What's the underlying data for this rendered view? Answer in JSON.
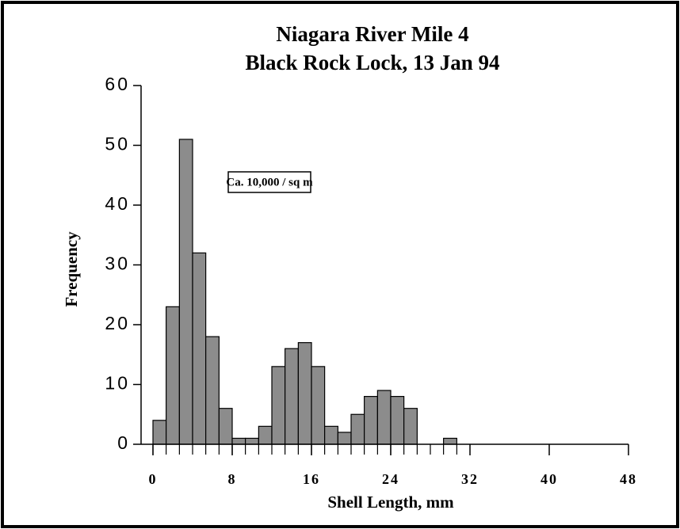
{
  "chart_data": {
    "type": "histogram",
    "title": "Niagara River Mile 4",
    "subtitle": "Black Rock Lock, 13 Jan 94",
    "annotation": "Ca. 10,000 / sq m",
    "xlabel": "Shell Length, mm",
    "ylabel": "Frequency",
    "bins": [
      0,
      1.33,
      2.67,
      4,
      5.33,
      6.67,
      8,
      9.33,
      10.67,
      12,
      13.33,
      14.67,
      16,
      17.33,
      18.67,
      20,
      21.33,
      22.67,
      24,
      25.33,
      26.67,
      28,
      29.33,
      30.67
    ],
    "values": [
      4,
      23,
      51,
      32,
      18,
      6,
      1,
      1,
      3,
      13,
      16,
      17,
      13,
      3,
      2,
      5,
      8,
      9,
      8,
      6,
      0,
      0,
      1
    ],
    "color": "#8c8c8c",
    "xlim": [
      0,
      48
    ],
    "xticks": [
      0,
      8,
      16,
      24,
      32,
      40,
      48
    ],
    "ylim": [
      0,
      60
    ],
    "yticks": [
      0,
      10,
      20,
      30,
      40,
      50,
      60
    ],
    "grid": false
  }
}
